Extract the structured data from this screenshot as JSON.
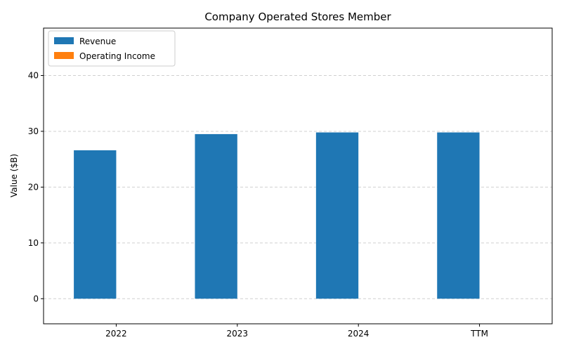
{
  "chart_data": {
    "type": "bar",
    "title": "Company Operated Stores Member",
    "xlabel": "",
    "ylabel": "Value ($B)",
    "categories": [
      "2022",
      "2023",
      "2024",
      "TTM"
    ],
    "series": [
      {
        "name": "Revenue",
        "values": [
          26.6,
          29.5,
          29.8,
          29.8
        ],
        "color": "#1f77b4"
      },
      {
        "name": "Operating Income",
        "values": [
          0,
          0,
          0,
          0
        ],
        "color": "#ff7f0e"
      }
    ],
    "ylim": [
      -4.5,
      48.5
    ],
    "yticks": [
      0,
      10,
      20,
      30,
      40
    ],
    "grid": true,
    "legend_position": "top-left"
  }
}
